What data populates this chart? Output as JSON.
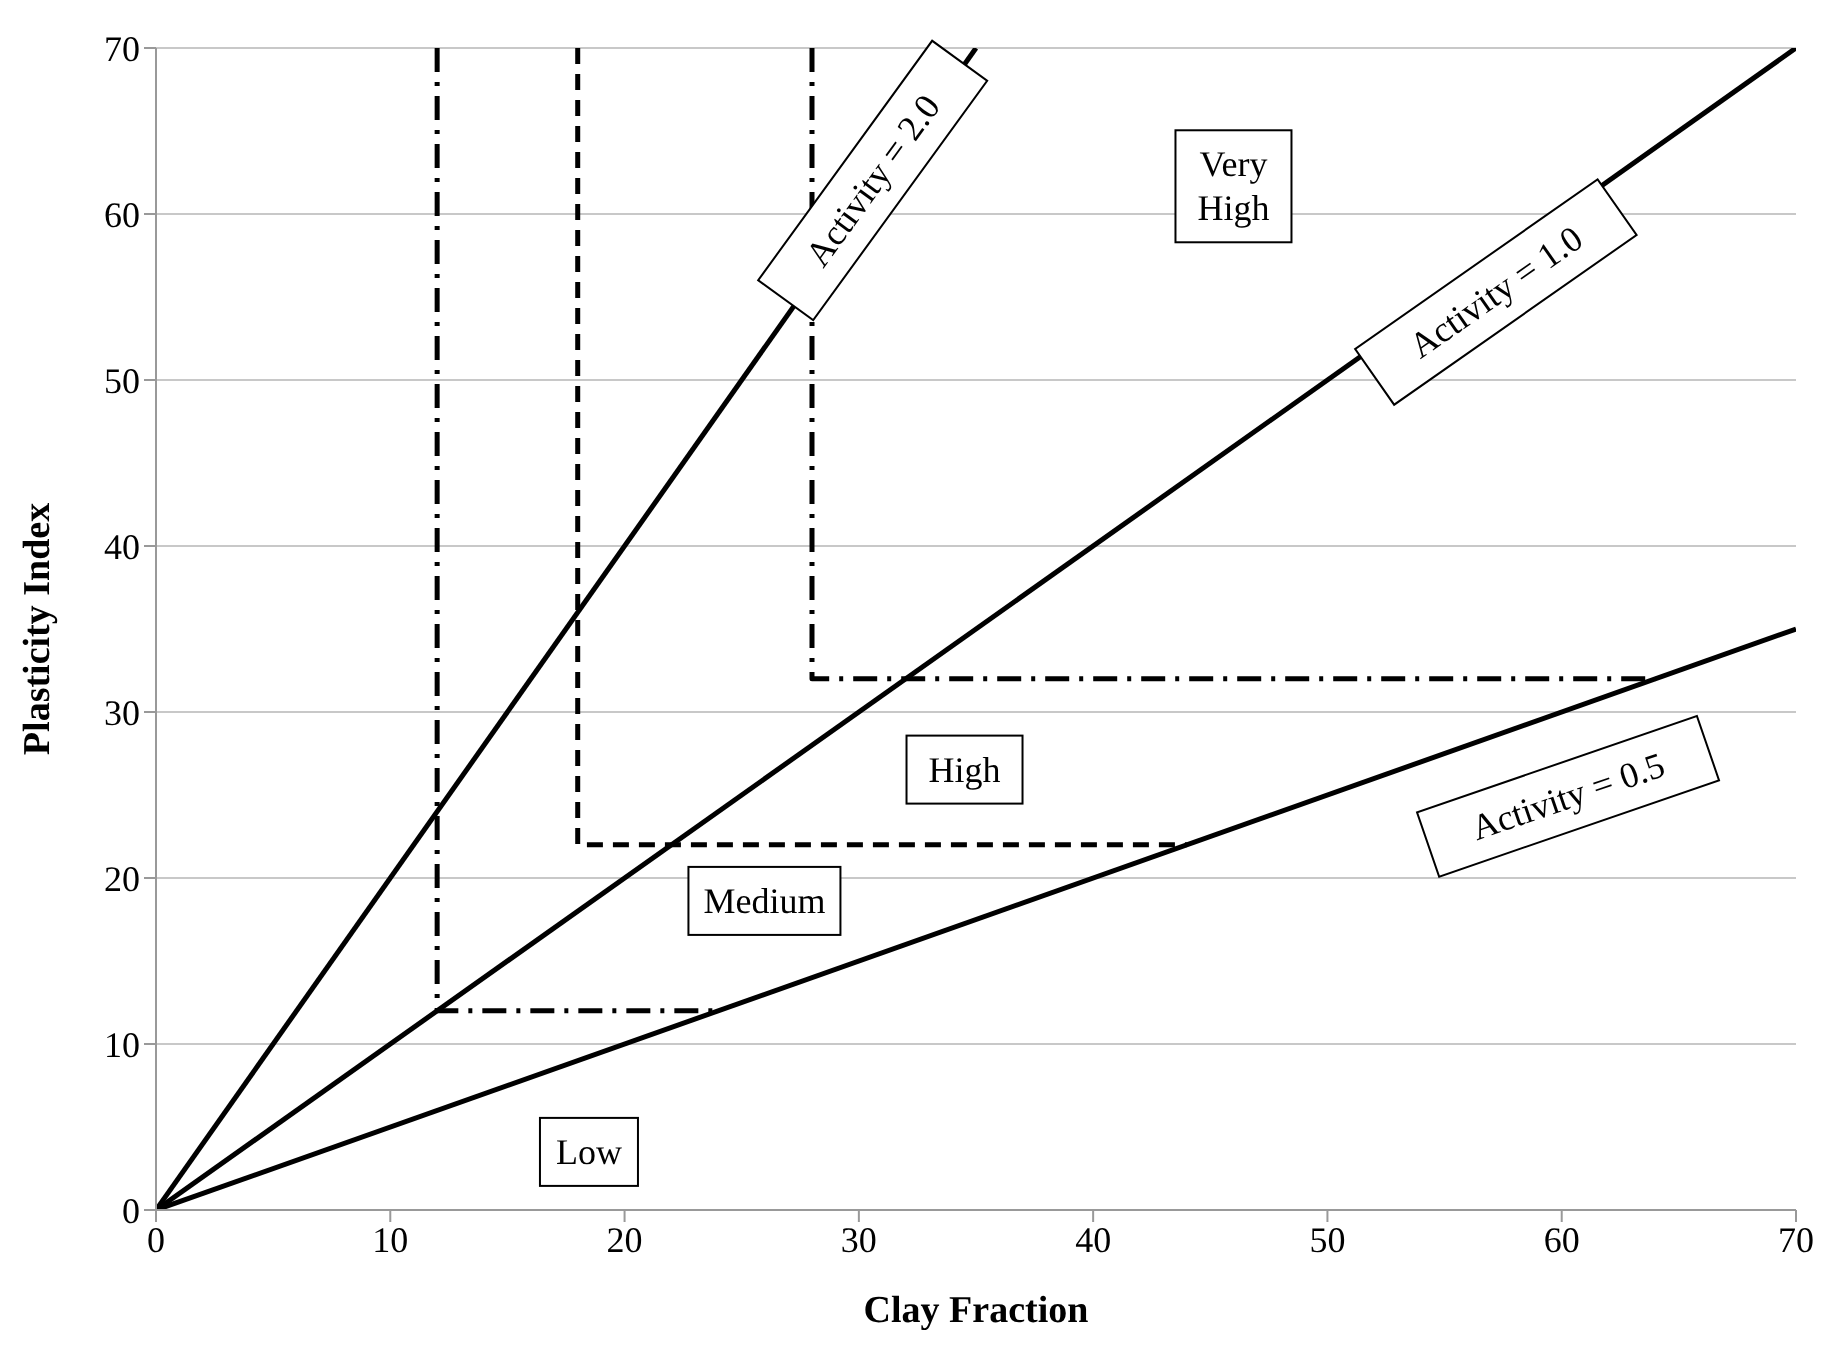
{
  "chart_data": {
    "type": "line",
    "xlabel": "Clay Fraction",
    "ylabel": "Plasticity Index",
    "xlim": [
      0,
      70
    ],
    "ylim": [
      0,
      70
    ],
    "xticks": [
      0,
      10,
      20,
      30,
      40,
      50,
      60,
      70
    ],
    "yticks": [
      0,
      10,
      20,
      30,
      40,
      50,
      60,
      70
    ],
    "grid": "y",
    "marker": "none",
    "series": [
      {
        "color": "#000000",
        "line_style": "solid",
        "x": [
          0,
          35
        ],
        "values": [
          0,
          70
        ]
      },
      {
        "color": "#000000",
        "line_style": "solid",
        "x": [
          0,
          70
        ],
        "values": [
          0,
          70
        ]
      },
      {
        "color": "#000000",
        "line_style": "solid",
        "x": [
          0,
          70
        ],
        "values": [
          0,
          35
        ]
      },
      {
        "color": "#000000",
        "line_style": "dashdot",
        "x": [
          12,
          12,
          24
        ],
        "values": [
          70,
          12,
          12
        ]
      },
      {
        "color": "#000000",
        "line_style": "dashed",
        "x": [
          18,
          18,
          44
        ],
        "values": [
          70,
          22,
          22
        ]
      },
      {
        "color": "#000000",
        "line_style": "dashdot",
        "x": [
          28,
          28,
          64
        ],
        "values": [
          70,
          32,
          32
        ]
      }
    ],
    "annotations": [
      "Activity = 2.0",
      "Very High",
      "Activity = 1.0",
      "High",
      "Medium",
      "Activity = 0.5",
      "Low"
    ]
  }
}
